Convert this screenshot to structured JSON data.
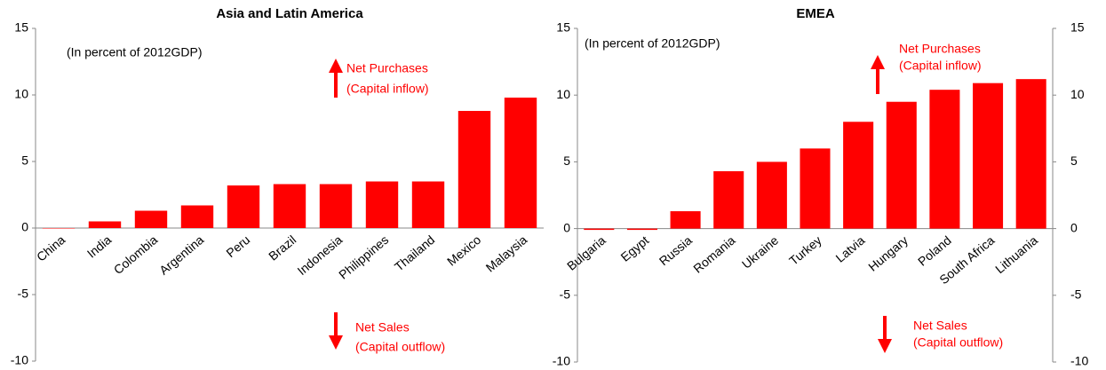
{
  "chart_data": [
    {
      "type": "bar",
      "title": "Asia and Latin America",
      "categories": [
        "China",
        "India",
        "Colombia",
        "Argentina",
        "Peru",
        "Brazil",
        "Indonesia",
        "Philippines",
        "Thailand",
        "Mexico",
        "Malaysia"
      ],
      "values": [
        0,
        0.5,
        1.3,
        1.7,
        3.2,
        3.3,
        3.3,
        3.5,
        3.5,
        8.8,
        9.8
      ],
      "color": "#ff0000",
      "ylim": [
        -10,
        15
      ],
      "yticks": [
        -10,
        -5,
        0,
        5,
        10,
        15
      ],
      "grid": false,
      "y_axis_sides": [
        "left"
      ],
      "annotations": [
        "(In percent of 2012GDP)",
        "Net Purchases",
        "(Capital inflow)",
        "Net Sales",
        "(Capital outflow)"
      ]
    },
    {
      "type": "bar",
      "title": "EMEA",
      "categories": [
        "Bulgaria",
        "Egypt",
        "Russia",
        "Romania",
        "Ukraine",
        "Turkey",
        "Latvia",
        "Hungary",
        "Poland",
        "South Africa",
        "Lithuania"
      ],
      "values": [
        -0.1,
        -0.1,
        1.3,
        4.3,
        5.0,
        6.0,
        8.0,
        9.5,
        10.4,
        10.9,
        11.2
      ],
      "color": "#ff0000",
      "ylim": [
        -10,
        15
      ],
      "yticks": [
        -10,
        -5,
        0,
        5,
        10,
        15
      ],
      "grid": false,
      "y_axis_sides": [
        "left",
        "right"
      ],
      "annotations": [
        "(In percent of 2012GDP)",
        "Net Purchases",
        "(Capital inflow)",
        "Net Sales",
        "(Capital outflow)"
      ]
    }
  ]
}
